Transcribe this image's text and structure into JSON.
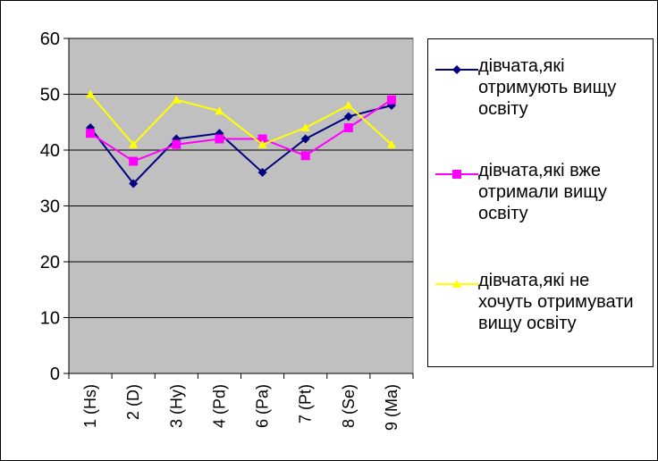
{
  "chart_data": {
    "type": "line",
    "categories": [
      "1 (Hs)",
      "2 (D)",
      "3 (Hy)",
      "4 (Pd)",
      "6 (Pa)",
      "7 (Pt)",
      "8 (Se)",
      "9 (Ma)"
    ],
    "series": [
      {
        "name": "дівчата,які отримують вищу освіту",
        "color": "#000080",
        "marker": "diamond",
        "values": [
          44,
          34,
          42,
          43,
          36,
          42,
          46,
          48
        ]
      },
      {
        "name": "дівчата,які вже отримали вищу освіту",
        "color": "#ff00ff",
        "marker": "square",
        "values": [
          43,
          38,
          41,
          42,
          42,
          39,
          44,
          49
        ]
      },
      {
        "name": "дівчата,які не хочуть отримувати вищу освіту",
        "color": "#ffff00",
        "marker": "triangle",
        "values": [
          50,
          41,
          49,
          47,
          41,
          44,
          48,
          41
        ]
      }
    ],
    "y_ticks": [
      "0",
      "10",
      "20",
      "30",
      "40",
      "50",
      "60"
    ],
    "ylim": [
      0,
      60
    ],
    "grid": true,
    "legend_position": "right",
    "plot_background": "#c0c0c0",
    "title": "",
    "xlabel": "",
    "ylabel": ""
  }
}
